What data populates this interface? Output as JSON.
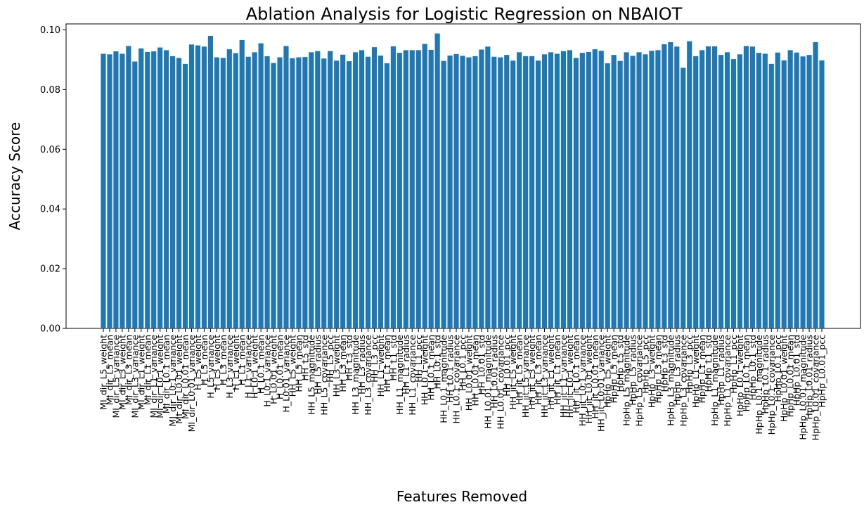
{
  "chart_data": {
    "type": "bar",
    "title": "Ablation Analysis for Logistic Regression on NBAIOT",
    "xlabel": "Features Removed",
    "ylabel": "Accuracy Score",
    "ylim": [
      0,
      0.102
    ],
    "yticks": [
      "0.00",
      "0.02",
      "0.04",
      "0.06",
      "0.08",
      "0.10"
    ],
    "grid": false,
    "bar_color": "#1f77b4",
    "categories": [
      "MI_dir_L5_weight",
      "MI_dir_L5_mean",
      "MI_dir_L5_variance",
      "MI_dir_L3_weight",
      "MI_dir_L3_mean",
      "MI_dir_L3_variance",
      "MI_dir_L1_weight",
      "MI_dir_L1_mean",
      "MI_dir_L1_variance",
      "MI_dir_L0.1_weight",
      "MI_dir_L0.1_mean",
      "MI_dir_L0.1_variance",
      "MI_dir_L0.01_weight",
      "MI_dir_L0.01_mean",
      "MI_dir_L0.01_variance",
      "H_L5_weight",
      "H_L5_mean",
      "H_L5_variance",
      "H_L3_weight",
      "H_L3_mean",
      "H_L3_variance",
      "H_L1_weight",
      "H_L1_mean",
      "H_L1_variance",
      "H_L0.1_weight",
      "H_L0.1_mean",
      "H_L0.1_variance",
      "H_L0.01_weight",
      "H_L0.01_mean",
      "H_L0.01_variance",
      "HH_L5_weight",
      "HH_L5_mean",
      "HH_L5_std",
      "HH_L5_magnitude",
      "HH_L5_radius",
      "HH_L5_covariance",
      "HH_L5_pcc",
      "HH_L3_weight",
      "HH_L3_mean",
      "HH_L3_std",
      "HH_L3_magnitude",
      "HH_L3_radius",
      "HH_L3_covariance",
      "HH_L3_pcc",
      "HH_L1_weight",
      "HH_L1_mean",
      "HH_L1_std",
      "HH_L1_magnitude",
      "HH_L1_radius",
      "HH_L1_covariance",
      "HH_L1_pcc",
      "HH_L0.1_weight",
      "HH_L0.1_mean",
      "HH_L0.1_std",
      "HH_L0.1_magnitude",
      "HH_L0.1_radius",
      "HH_L0.1_covariance",
      "HH_L0.1_pcc",
      "HH_L0.01_weight",
      "HH_L0.01_mean",
      "HH_L0.01_std",
      "HH_L0.01_magnitude",
      "HH_L0.01_radius",
      "HH_L0.01_covariance",
      "HH_L0.01_pcc",
      "HH_jit_L5_weight",
      "HH_jit_L5_mean",
      "HH_jit_L5_variance",
      "HH_jit_L3_weight",
      "HH_jit_L3_mean",
      "HH_jit_L3_variance",
      "HH_jit_L1_weight",
      "HH_jit_L1_mean",
      "HH_jit_L1_variance",
      "HH_jit_L0.1_weight",
      "HH_jit_L0.1_mean",
      "HH_jit_L0.1_variance",
      "HH_jit_L0.01_weight",
      "HH_jit_L0.01_mean",
      "HH_jit_L0.01_variance",
      "HpHp_L5_weight",
      "HpHp_L5_mean",
      "HpHp_L5_std",
      "HpHp_L5_magnitude",
      "HpHp_L5_radius",
      "HpHp_L5_covariance",
      "HpHp_L5_pcc",
      "HpHp_L3_weight",
      "HpHp_L3_mean",
      "HpHp_L3_std",
      "HpHp_L3_magnitude",
      "HpHp_L3_radius",
      "HpHp_L3_covariance",
      "HpHp_L3_pcc",
      "HpHp_L1_weight",
      "HpHp_L1_mean",
      "HpHp_L1_std",
      "HpHp_L1_magnitude",
      "HpHp_L1_radius",
      "HpHp_L1_covariance",
      "HpHp_L1_pcc",
      "HpHp_L0.1_weight",
      "HpHp_L0.1_mean",
      "HpHp_L0.1_std",
      "HpHp_L0.1_magnitude",
      "HpHp_L0.1_radius",
      "HpHp_L0.1_covariance",
      "HpHp_L0.1_pcc",
      "HpHp_L0.01_weight",
      "HpHp_L0.01_mean",
      "HpHp_L0.01_std",
      "HpHp_L0.01_magnitude",
      "HpHp_L0.01_radius",
      "HpHp_L0.01_covariance",
      "HpHp_L0.01_pcc"
    ],
    "values": [
      0.092,
      0.0918,
      0.0928,
      0.092,
      0.0946,
      0.0894,
      0.0938,
      0.0926,
      0.0928,
      0.0941,
      0.0932,
      0.0912,
      0.0906,
      0.0886,
      0.0951,
      0.0948,
      0.0944,
      0.098,
      0.0908,
      0.0906,
      0.0935,
      0.0922,
      0.0966,
      0.091,
      0.0925,
      0.0955,
      0.0912,
      0.0889,
      0.0908,
      0.0946,
      0.0905,
      0.0908,
      0.0909,
      0.0925,
      0.0929,
      0.0904,
      0.0929,
      0.0897,
      0.0917,
      0.0895,
      0.0925,
      0.0932,
      0.091,
      0.0942,
      0.0914,
      0.0888,
      0.0945,
      0.0923,
      0.0932,
      0.0932,
      0.0932,
      0.0953,
      0.0933,
      0.0988,
      0.0896,
      0.0914,
      0.0919,
      0.0913,
      0.0908,
      0.0912,
      0.0934,
      0.0944,
      0.091,
      0.0908,
      0.0916,
      0.0897,
      0.0925,
      0.0912,
      0.0912,
      0.0897,
      0.0918,
      0.0925,
      0.092,
      0.0929,
      0.0932,
      0.0906,
      0.0923,
      0.0926,
      0.0935,
      0.093,
      0.0888,
      0.0916,
      0.0896,
      0.0925,
      0.0913,
      0.0925,
      0.0918,
      0.093,
      0.0932,
      0.0952,
      0.0959,
      0.0944,
      0.0873,
      0.0962,
      0.0912,
      0.0932,
      0.0945,
      0.0945,
      0.0916,
      0.0925,
      0.0902,
      0.0918,
      0.0946,
      0.0944,
      0.0923,
      0.092,
      0.0886,
      0.0924,
      0.0898,
      0.0932,
      0.0924,
      0.0911,
      0.0916,
      0.0959,
      0.0898
    ]
  }
}
